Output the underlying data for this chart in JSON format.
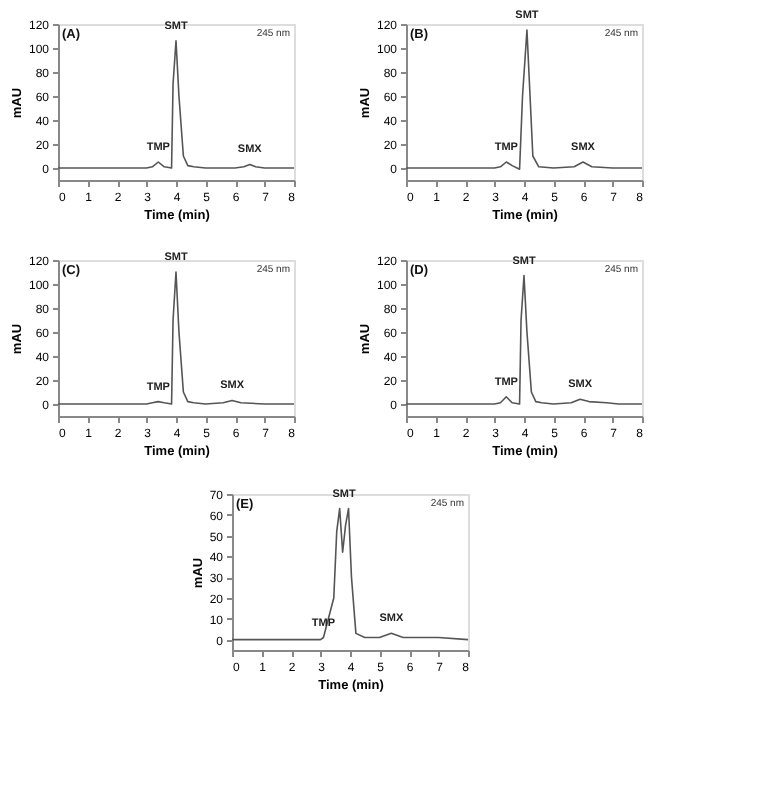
{
  "chart_data": [
    {
      "type": "line",
      "title": "(A)",
      "xlabel": "Time (min)",
      "ylabel": "mAU",
      "xlim": [
        0,
        8
      ],
      "xticks": [
        0,
        1,
        2,
        3,
        4,
        5,
        6,
        7,
        8
      ],
      "ylim": [
        -10,
        120
      ],
      "yticks": [
        0,
        20,
        40,
        60,
        80,
        100,
        120
      ],
      "grid": false,
      "x": [
        0,
        1,
        2,
        3,
        3.2,
        3.4,
        3.6,
        3.85,
        3.9,
        4.0,
        4.1,
        4.25,
        4.4,
        4.6,
        5,
        6,
        6.3,
        6.5,
        6.7,
        7,
        8
      ],
      "series": [
        {
          "color": "#555555",
          "values": [
            0,
            0,
            0,
            0,
            1,
            5,
            1,
            0,
            70,
            106,
            60,
            10,
            2,
            1,
            0,
            0,
            1,
            3,
            1,
            0,
            0
          ]
        }
      ],
      "annotations": [
        {
          "text": "TMP",
          "x": 3.4,
          "y": 5
        },
        {
          "text": "SMT",
          "x": 4.0,
          "y": 106
        },
        {
          "text": "SMX",
          "x": 6.5,
          "y": 3
        },
        "245 nm"
      ]
    },
    {
      "type": "line",
      "title": "(B)",
      "xlabel": "Time (min)",
      "ylabel": "mAU",
      "xlim": [
        0,
        8
      ],
      "xticks": [
        0,
        1,
        2,
        3,
        4,
        5,
        6,
        7,
        8
      ],
      "ylim": [
        -10,
        120
      ],
      "yticks": [
        0,
        20,
        40,
        60,
        80,
        100,
        120
      ],
      "grid": false,
      "x": [
        0,
        1,
        2,
        3,
        3.2,
        3.4,
        3.6,
        3.85,
        3.95,
        4.1,
        4.3,
        4.5,
        5,
        5.7,
        6.0,
        6.3,
        7,
        8
      ],
      "series": [
        {
          "color": "#555555",
          "values": [
            0,
            0,
            0,
            0,
            1,
            5,
            2,
            -1,
            60,
            115,
            10,
            1,
            0,
            1,
            5,
            1,
            0,
            0
          ]
        }
      ],
      "annotations": [
        {
          "text": "TMP",
          "x": 3.4,
          "y": 5
        },
        {
          "text": "SMT",
          "x": 4.1,
          "y": 115
        },
        {
          "text": "SMX",
          "x": 6.0,
          "y": 5
        },
        "245 nm"
      ]
    },
    {
      "type": "line",
      "title": "(C)",
      "xlabel": "Time (min)",
      "ylabel": "mAU",
      "xlim": [
        0,
        8
      ],
      "xticks": [
        0,
        1,
        2,
        3,
        4,
        5,
        6,
        7,
        8
      ],
      "ylim": [
        -10,
        120
      ],
      "yticks": [
        0,
        20,
        40,
        60,
        80,
        100,
        120
      ],
      "grid": false,
      "x": [
        0,
        1,
        2,
        3,
        3.2,
        3.4,
        3.6,
        3.85,
        3.9,
        4.0,
        4.1,
        4.25,
        4.4,
        4.6,
        5,
        5.6,
        5.9,
        6.2,
        7,
        8
      ],
      "series": [
        {
          "color": "#555555",
          "values": [
            0,
            0,
            0,
            0,
            1,
            2,
            1,
            0,
            70,
            110,
            60,
            10,
            2,
            1,
            0,
            1,
            3,
            1,
            0,
            0
          ]
        }
      ],
      "annotations": [
        {
          "text": "TMP",
          "x": 3.4,
          "y": 2
        },
        {
          "text": "SMT",
          "x": 4.0,
          "y": 110
        },
        {
          "text": "SMX",
          "x": 5.9,
          "y": 3
        },
        "245 nm"
      ]
    },
    {
      "type": "line",
      "title": "(D)",
      "xlabel": "Time (min)",
      "ylabel": "mAU",
      "xlim": [
        0,
        8
      ],
      "xticks": [
        0,
        1,
        2,
        3,
        4,
        5,
        6,
        7,
        8
      ],
      "ylim": [
        -10,
        120
      ],
      "yticks": [
        0,
        20,
        40,
        60,
        80,
        100,
        120
      ],
      "grid": false,
      "x": [
        0,
        1,
        2,
        3,
        3.2,
        3.4,
        3.6,
        3.85,
        3.9,
        4.0,
        4.1,
        4.25,
        4.4,
        4.6,
        5,
        5.6,
        5.9,
        6.2,
        6.8,
        7.2,
        8
      ],
      "series": [
        {
          "color": "#555555",
          "values": [
            0,
            0,
            0,
            0,
            1,
            6,
            1,
            0,
            70,
            107,
            60,
            10,
            2,
            1,
            0,
            1,
            4,
            2,
            1,
            0,
            0
          ]
        }
      ],
      "annotations": [
        {
          "text": "TMP",
          "x": 3.4,
          "y": 6
        },
        {
          "text": "SMT",
          "x": 4.0,
          "y": 107
        },
        {
          "text": "SMX",
          "x": 5.9,
          "y": 4
        },
        "245 nm"
      ]
    },
    {
      "type": "line",
      "title": "(E)",
      "xlabel": "Time (min)",
      "ylabel": "mAU",
      "xlim": [
        0,
        8
      ],
      "xticks": [
        0,
        1,
        2,
        3,
        4,
        5,
        6,
        7,
        8
      ],
      "ylim": [
        -5,
        70
      ],
      "yticks": [
        0,
        10,
        20,
        30,
        40,
        50,
        60,
        70
      ],
      "grid": false,
      "x": [
        0,
        1,
        2,
        3,
        3.1,
        3.45,
        3.55,
        3.65,
        3.75,
        3.85,
        3.95,
        4.05,
        4.2,
        4.5,
        5,
        5.4,
        5.8,
        7,
        8
      ],
      "series": [
        {
          "color": "#555555",
          "values": [
            0,
            0,
            0,
            0,
            1,
            20,
            52,
            63,
            42,
            55,
            63,
            30,
            3,
            1,
            1,
            3,
            1,
            1,
            0
          ]
        }
      ],
      "annotations": [
        {
          "text": "TMP",
          "x": 3.1,
          "y": 1
        },
        {
          "text": "SMT",
          "x": 3.8,
          "y": 63
        },
        {
          "text": "SMX",
          "x": 5.4,
          "y": 3
        },
        "245 nm"
      ]
    }
  ]
}
